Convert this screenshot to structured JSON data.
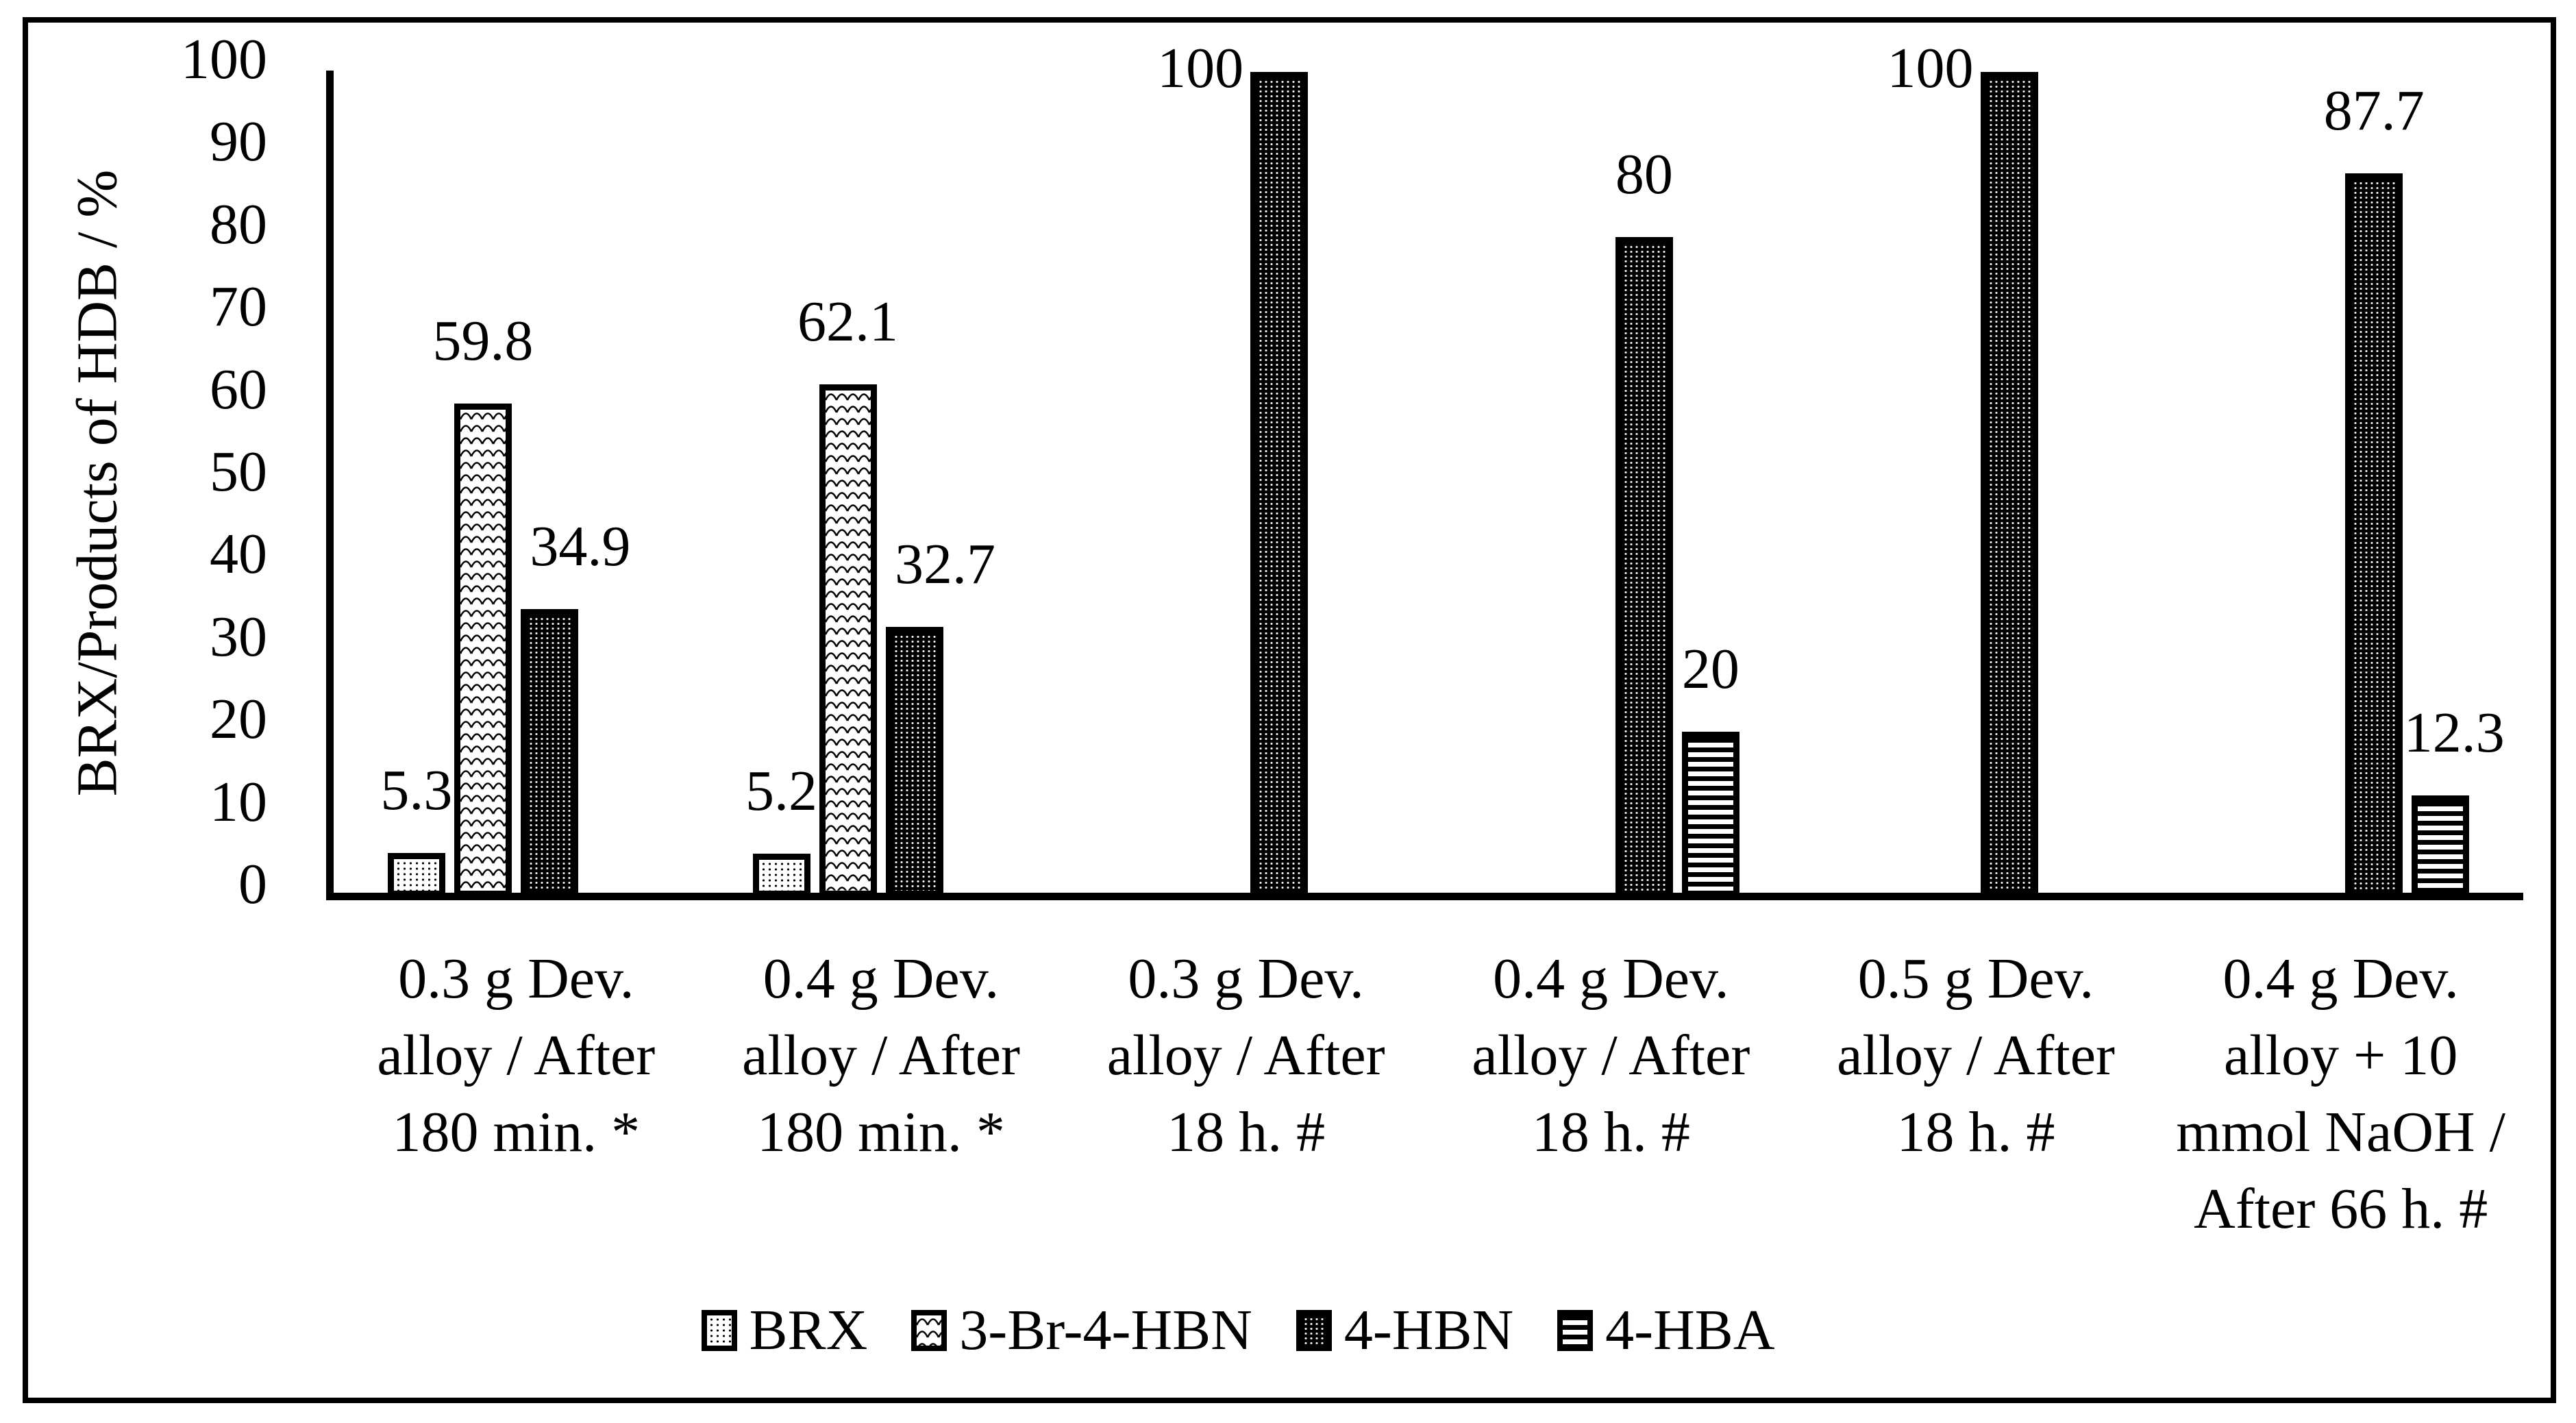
{
  "figure": {
    "background": "#ffffff",
    "border_color": "#000000",
    "ink_color": "#000000"
  },
  "y_axis": {
    "title": "BRX/Products of HDB / %",
    "tick_labels": [
      "0",
      "10",
      "20",
      "30",
      "40",
      "50",
      "60",
      "70",
      "80",
      "90",
      "100"
    ]
  },
  "legend": {
    "position": "bottom-center",
    "items": [
      {
        "label": "BRX",
        "pattern": "dots-light"
      },
      {
        "label": "3-Br-4-HBN",
        "pattern": "waves"
      },
      {
        "label": "4-HBN",
        "pattern": "dots-dense"
      },
      {
        "label": "4-HBA",
        "pattern": "hlines"
      }
    ]
  },
  "chart_data": {
    "type": "bar",
    "title": "",
    "xlabel": "",
    "ylabel": "BRX/Products of HDB / %",
    "ylim": [
      0,
      100
    ],
    "y_tick_step": 10,
    "grid": false,
    "legend_position": "bottom",
    "bar_fill_style": "black-and-white hatch patterns",
    "categories": [
      "0.3 g Dev. alloy / After 180 min. *",
      "0.4 g Dev. alloy / After 180 min. *",
      "0.3 g Dev. alloy / After 18 h. #",
      "0.4 g Dev. alloy / After 18 h. #",
      "0.5 g Dev. alloy / After 18 h. #",
      "0.4 g Dev. alloy + 10 mmol NaOH / After 66 h. #"
    ],
    "categories_label_lines": [
      [
        "0.3 g Dev.",
        "alloy / After",
        "180 min. *"
      ],
      [
        "0.4 g Dev.",
        "alloy / After",
        "180 min. *"
      ],
      [
        "0.3 g Dev.",
        "alloy / After",
        "18 h. #"
      ],
      [
        "0.4 g Dev.",
        "alloy / After",
        "18 h. #"
      ],
      [
        "0.5 g Dev.",
        "alloy / After",
        "18 h. #"
      ],
      [
        "0.4 g Dev.",
        "alloy + 10",
        "mmol NaOH /",
        "After 66 h. #"
      ]
    ],
    "series": [
      {
        "name": "BRX",
        "pattern": "dots-light",
        "values": [
          5.3,
          5.2,
          null,
          null,
          null,
          null
        ],
        "labels": [
          "5.3",
          "5.2",
          null,
          null,
          null,
          null
        ]
      },
      {
        "name": "3-Br-4-HBN",
        "pattern": "waves",
        "values": [
          59.8,
          62.1,
          null,
          null,
          null,
          null
        ],
        "labels": [
          "59.8",
          "62.1",
          null,
          null,
          null,
          null
        ]
      },
      {
        "name": "4-HBN",
        "pattern": "dots-dense",
        "values": [
          34.9,
          32.7,
          100,
          80,
          100,
          87.7
        ],
        "labels": [
          "34.9",
          "32.7",
          "100",
          "80",
          "100",
          "87.7"
        ],
        "label_side": [
          "above",
          "above",
          "left",
          "above",
          "left",
          "above"
        ],
        "label_dx": [
          45,
          45,
          0,
          0,
          0,
          0
        ]
      },
      {
        "name": "4-HBA",
        "pattern": "hlines",
        "values": [
          null,
          null,
          null,
          20,
          null,
          12.3
        ],
        "labels": [
          null,
          null,
          null,
          "20",
          null,
          "12.3"
        ],
        "label_dx": [
          0,
          0,
          0,
          0,
          0,
          20
        ]
      }
    ],
    "data_labels_visible": true
  }
}
